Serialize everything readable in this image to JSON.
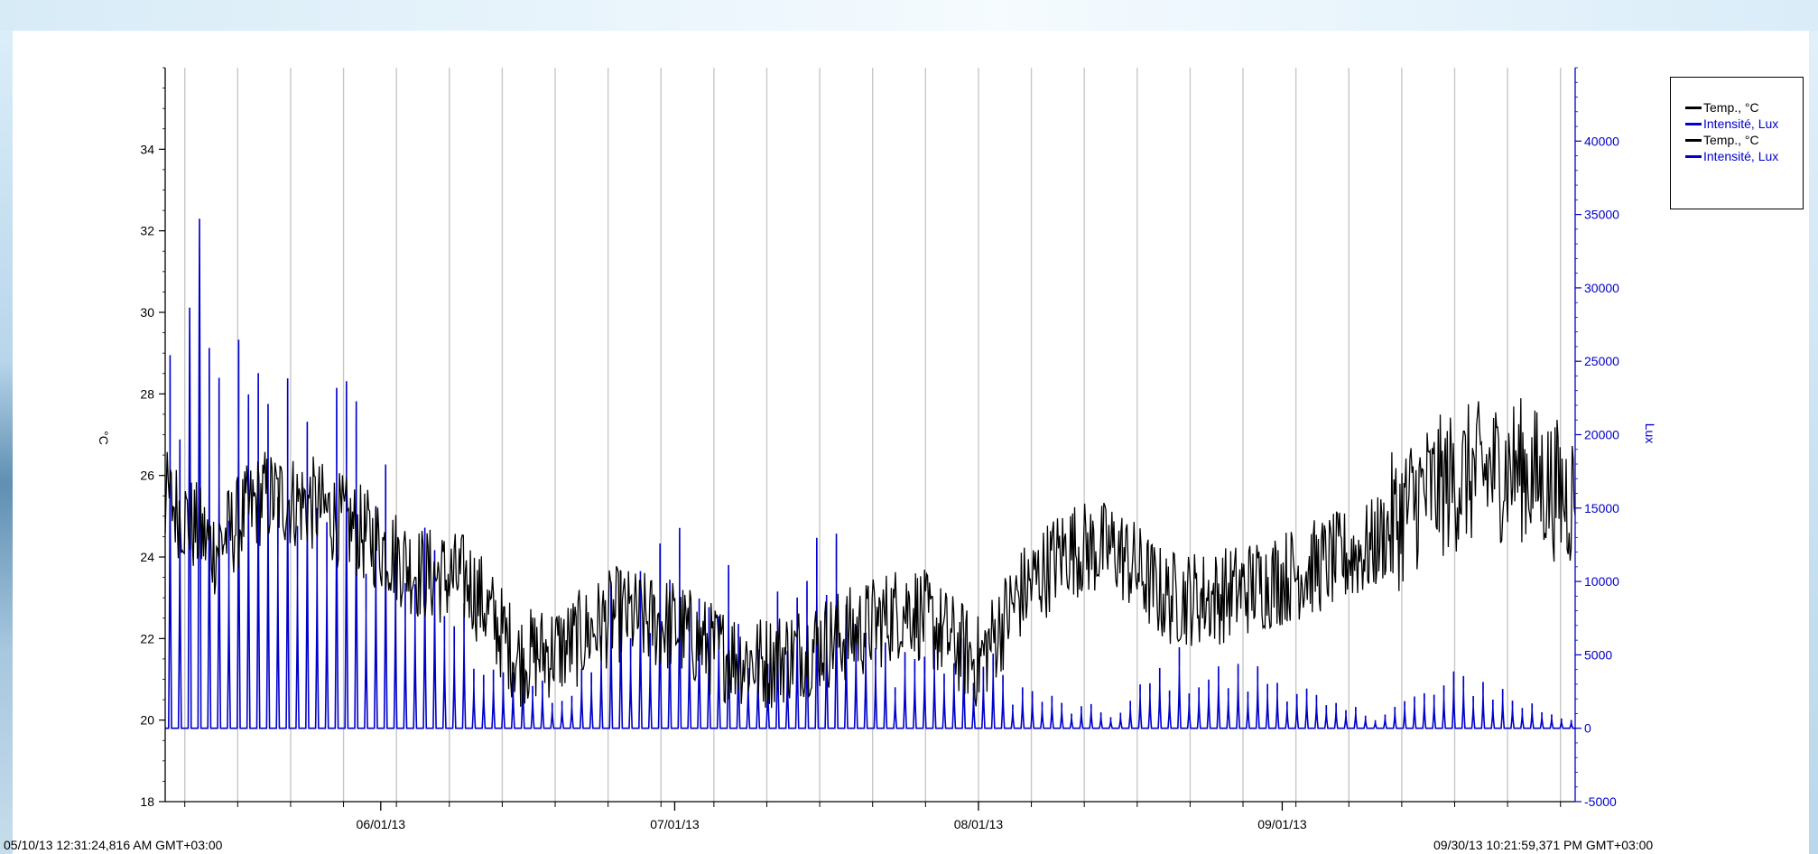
{
  "chart_data": {
    "type": "line",
    "x_start_label": "05/10/13 12:31:24,816 AM GMT+03:00",
    "x_end_label": "09/30/13 10:21:59,371 PM GMT+03:00",
    "x_tick_labels": [
      "06/01/13",
      "07/01/13",
      "08/01/13",
      "09/01/13"
    ],
    "y_left": {
      "label": "°C",
      "range": [
        18,
        36
      ],
      "tick_labels": [
        "18",
        "20",
        "22",
        "24",
        "26",
        "28",
        "30",
        "32",
        "34"
      ],
      "color": "#000000"
    },
    "y_right": {
      "label": "Lux",
      "range": [
        -5000,
        45000
      ],
      "tick_labels": [
        "-5000",
        "0",
        "5000",
        "10000",
        "15000",
        "20000",
        "25000",
        "30000",
        "35000",
        "40000"
      ],
      "color": "#0000cc"
    },
    "grid": "vertical lines at day boundaries",
    "legend_placement": "top-right",
    "series": [
      {
        "name": "Temp., °C",
        "axis": "left",
        "color": "#000000",
        "approx_daily_mean": {
          "dates": [
            "05/10",
            "05/15",
            "05/20",
            "05/25",
            "06/01",
            "06/05",
            "06/10",
            "06/15",
            "06/20",
            "06/25",
            "07/01",
            "07/05",
            "07/10",
            "07/15",
            "07/20",
            "07/25",
            "08/01",
            "08/05",
            "08/10",
            "08/15",
            "08/20",
            "08/25",
            "09/01",
            "09/05",
            "09/10",
            "09/15",
            "09/20",
            "09/25",
            "09/30"
          ],
          "values": [
            25.5,
            24.2,
            25.5,
            25.3,
            24.3,
            23.6,
            23.4,
            21.5,
            21.8,
            22.6,
            22.3,
            21.7,
            21.4,
            21.8,
            22.2,
            22.8,
            21.4,
            23.0,
            24.2,
            24.2,
            23.0,
            23.0,
            23.5,
            23.8,
            24.2,
            25.5,
            26.0,
            26.2,
            25.5
          ]
        }
      },
      {
        "name": "Intensité, Lux",
        "axis": "right",
        "color": "#0000cc",
        "approx_daily_peak": {
          "dates": [
            "05/10",
            "05/12",
            "05/15",
            "05/20",
            "05/25",
            "06/01",
            "06/05",
            "06/10",
            "06/15",
            "06/20",
            "06/25",
            "07/01",
            "07/05",
            "07/10",
            "07/15",
            "07/20",
            "07/25",
            "08/01",
            "08/05",
            "08/10",
            "08/15",
            "08/20",
            "08/25",
            "09/01",
            "09/05",
            "09/10",
            "09/15",
            "09/20",
            "09/25",
            "09/30"
          ],
          "values": [
            27000,
            31000,
            25000,
            22000,
            24000,
            18000,
            12000,
            7000,
            4000,
            2000,
            11000,
            14000,
            10000,
            8000,
            17000,
            6000,
            6000,
            5000,
            3000,
            1500,
            1200,
            5000,
            4000,
            4000,
            1500,
            1200,
            2500,
            4000,
            2000,
            800
          ]
        }
      }
    ],
    "legend_entries": [
      "Temp., °C",
      "Intensité, Lux",
      "Temp., °C",
      "Intensité, Lux"
    ]
  }
}
